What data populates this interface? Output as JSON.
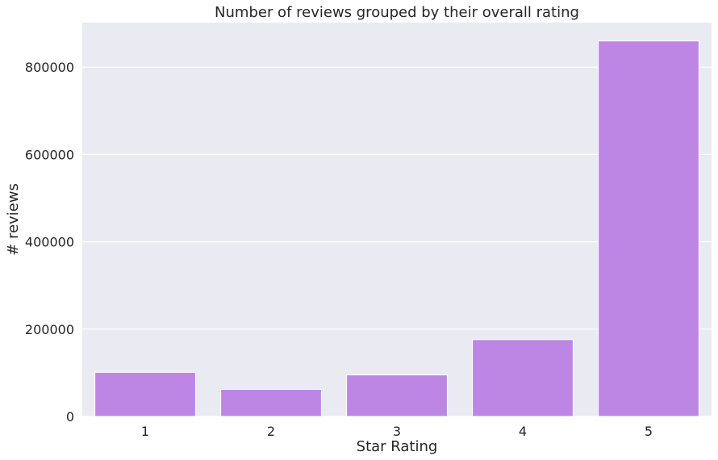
{
  "colors": {
    "plot_background": "#eaeaf2",
    "grid": "#ffffff",
    "bar": "#bd86e5",
    "text": "#262626"
  },
  "chart_data": {
    "type": "bar",
    "title": "Number of reviews grouped by their overall rating",
    "xlabel": "Star Rating",
    "ylabel": "# reviews",
    "categories": [
      "1",
      "2",
      "3",
      "4",
      "5"
    ],
    "values": [
      101000,
      62000,
      95000,
      176000,
      860000
    ],
    "ylim": [
      0,
      902000
    ],
    "yticks": [
      0,
      200000,
      400000,
      600000,
      800000
    ],
    "ytick_labels": [
      "0",
      "200000",
      "400000",
      "600000",
      "800000"
    ],
    "grid": true,
    "legend": "none"
  }
}
